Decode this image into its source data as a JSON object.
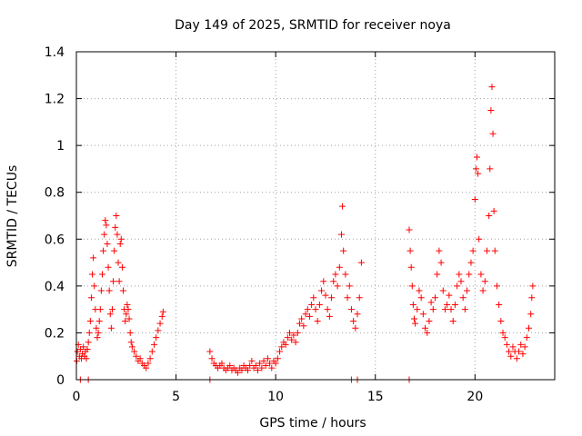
{
  "chart_data": {
    "type": "scatter",
    "title": "Day 149 of 2025, SRMTID for receiver noya",
    "xlabel": "GPS time / hours",
    "ylabel": "SRMTID / TECUs",
    "xlim": [
      0,
      24
    ],
    "ylim": [
      0,
      1.4
    ],
    "xticks": [
      0,
      5,
      10,
      15,
      20
    ],
    "xtick_labels": [
      "0",
      "5",
      "10",
      "15",
      "20"
    ],
    "yticks": [
      0,
      0.2,
      0.4,
      0.6,
      0.8,
      1.0,
      1.2,
      1.4
    ],
    "ytick_labels": [
      "0",
      "0.2",
      "0.4",
      "0.6",
      "0.8",
      "1",
      "1.2",
      "1.4"
    ],
    "grid": true,
    "marker": "+",
    "color": "#ff0000",
    "series": [
      {
        "name": "SRMTID",
        "points": [
          [
            0.02,
            0.08
          ],
          [
            0.05,
            0.12
          ],
          [
            0.1,
            0.15
          ],
          [
            0.15,
            0.1
          ],
          [
            0.2,
            0.13
          ],
          [
            0.25,
            0.09
          ],
          [
            0.3,
            0.11
          ],
          [
            0.35,
            0.14
          ],
          [
            0.4,
            0.1
          ],
          [
            0.45,
            0.12
          ],
          [
            0.5,
            0.09
          ],
          [
            0.55,
            0.13
          ],
          [
            0.6,
            0.16
          ],
          [
            0.65,
            0.2
          ],
          [
            0.7,
            0.25
          ],
          [
            0.75,
            0.35
          ],
          [
            0.8,
            0.45
          ],
          [
            0.85,
            0.52
          ],
          [
            0.9,
            0.4
          ],
          [
            0.95,
            0.3
          ],
          [
            1.0,
            0.22
          ],
          [
            1.05,
            0.18
          ],
          [
            1.1,
            0.2
          ],
          [
            1.15,
            0.25
          ],
          [
            1.2,
            0.3
          ],
          [
            1.25,
            0.38
          ],
          [
            1.3,
            0.45
          ],
          [
            1.35,
            0.55
          ],
          [
            1.4,
            0.62
          ],
          [
            1.45,
            0.68
          ],
          [
            1.5,
            0.66
          ],
          [
            1.55,
            0.58
          ],
          [
            1.6,
            0.48
          ],
          [
            1.65,
            0.38
          ],
          [
            1.7,
            0.28
          ],
          [
            1.75,
            0.22
          ],
          [
            1.8,
            0.3
          ],
          [
            1.85,
            0.42
          ],
          [
            1.9,
            0.55
          ],
          [
            1.95,
            0.65
          ],
          [
            2.0,
            0.7
          ],
          [
            2.05,
            0.62
          ],
          [
            2.1,
            0.5
          ],
          [
            2.15,
            0.42
          ],
          [
            2.2,
            0.58
          ],
          [
            2.25,
            0.6
          ],
          [
            2.3,
            0.48
          ],
          [
            2.35,
            0.38
          ],
          [
            2.4,
            0.3
          ],
          [
            2.45,
            0.25
          ],
          [
            2.5,
            0.28
          ],
          [
            2.55,
            0.32
          ],
          [
            2.6,
            0.3
          ],
          [
            2.65,
            0.26
          ],
          [
            2.7,
            0.2
          ],
          [
            2.75,
            0.16
          ],
          [
            2.8,
            0.14
          ],
          [
            2.9,
            0.12
          ],
          [
            3.0,
            0.1
          ],
          [
            3.1,
            0.08
          ],
          [
            3.2,
            0.09
          ],
          [
            3.3,
            0.07
          ],
          [
            3.4,
            0.06
          ],
          [
            3.5,
            0.05
          ],
          [
            3.6,
            0.07
          ],
          [
            3.7,
            0.09
          ],
          [
            3.8,
            0.12
          ],
          [
            3.9,
            0.15
          ],
          [
            4.0,
            0.18
          ],
          [
            4.1,
            0.21
          ],
          [
            4.2,
            0.24
          ],
          [
            4.3,
            0.27
          ],
          [
            4.35,
            0.29
          ],
          [
            0.2,
            0.0
          ],
          [
            0.6,
            0.0
          ],
          [
            6.7,
            0.12
          ],
          [
            6.8,
            0.09
          ],
          [
            6.9,
            0.07
          ],
          [
            7.0,
            0.06
          ],
          [
            7.1,
            0.05
          ],
          [
            7.2,
            0.06
          ],
          [
            7.3,
            0.07
          ],
          [
            7.4,
            0.05
          ],
          [
            7.5,
            0.04
          ],
          [
            7.6,
            0.05
          ],
          [
            7.7,
            0.06
          ],
          [
            7.8,
            0.04
          ],
          [
            7.9,
            0.05
          ],
          [
            8.0,
            0.04
          ],
          [
            8.1,
            0.03
          ],
          [
            8.2,
            0.05
          ],
          [
            8.3,
            0.04
          ],
          [
            8.4,
            0.06
          ],
          [
            8.5,
            0.05
          ],
          [
            8.6,
            0.04
          ],
          [
            8.7,
            0.06
          ],
          [
            8.8,
            0.08
          ],
          [
            8.9,
            0.05
          ],
          [
            9.0,
            0.06
          ],
          [
            9.1,
            0.04
          ],
          [
            9.2,
            0.07
          ],
          [
            9.3,
            0.05
          ],
          [
            9.4,
            0.08
          ],
          [
            9.5,
            0.06
          ],
          [
            9.6,
            0.09
          ],
          [
            9.7,
            0.07
          ],
          [
            9.8,
            0.05
          ],
          [
            9.9,
            0.08
          ],
          [
            10.0,
            0.07
          ],
          [
            10.1,
            0.09
          ],
          [
            10.2,
            0.12
          ],
          [
            10.3,
            0.14
          ],
          [
            10.4,
            0.16
          ],
          [
            10.5,
            0.15
          ],
          [
            10.6,
            0.18
          ],
          [
            10.7,
            0.2
          ],
          [
            10.8,
            0.17
          ],
          [
            10.9,
            0.19
          ],
          [
            11.0,
            0.16
          ],
          [
            11.1,
            0.2
          ],
          [
            11.2,
            0.24
          ],
          [
            11.3,
            0.26
          ],
          [
            11.4,
            0.23
          ],
          [
            11.5,
            0.28
          ],
          [
            11.6,
            0.3
          ],
          [
            11.7,
            0.27
          ],
          [
            11.8,
            0.32
          ],
          [
            11.9,
            0.35
          ],
          [
            12.0,
            0.3
          ],
          [
            12.1,
            0.25
          ],
          [
            12.2,
            0.32
          ],
          [
            12.3,
            0.38
          ],
          [
            12.4,
            0.42
          ],
          [
            12.5,
            0.36
          ],
          [
            12.6,
            0.3
          ],
          [
            12.7,
            0.27
          ],
          [
            12.8,
            0.35
          ],
          [
            12.9,
            0.42
          ],
          [
            13.0,
            0.45
          ],
          [
            13.1,
            0.4
          ],
          [
            13.2,
            0.48
          ],
          [
            13.3,
            0.62
          ],
          [
            13.35,
            0.74
          ],
          [
            13.4,
            0.55
          ],
          [
            13.5,
            0.45
          ],
          [
            13.6,
            0.35
          ],
          [
            13.7,
            0.4
          ],
          [
            13.8,
            0.3
          ],
          [
            13.9,
            0.25
          ],
          [
            14.0,
            0.22
          ],
          [
            14.1,
            0.28
          ],
          [
            14.2,
            0.35
          ],
          [
            14.3,
            0.5
          ],
          [
            6.7,
            0.0
          ],
          [
            13.8,
            0.0
          ],
          [
            14.1,
            0.0
          ],
          [
            16.7,
            0.0
          ],
          [
            16.7,
            0.64
          ],
          [
            16.75,
            0.55
          ],
          [
            16.8,
            0.48
          ],
          [
            16.85,
            0.4
          ],
          [
            16.9,
            0.32
          ],
          [
            16.95,
            0.26
          ],
          [
            17.0,
            0.24
          ],
          [
            17.1,
            0.3
          ],
          [
            17.2,
            0.38
          ],
          [
            17.3,
            0.35
          ],
          [
            17.4,
            0.28
          ],
          [
            17.5,
            0.22
          ],
          [
            17.6,
            0.2
          ],
          [
            17.7,
            0.25
          ],
          [
            17.8,
            0.33
          ],
          [
            17.9,
            0.3
          ],
          [
            18.0,
            0.35
          ],
          [
            18.1,
            0.45
          ],
          [
            18.2,
            0.55
          ],
          [
            18.3,
            0.5
          ],
          [
            18.4,
            0.38
          ],
          [
            18.5,
            0.3
          ],
          [
            18.6,
            0.32
          ],
          [
            18.7,
            0.36
          ],
          [
            18.8,
            0.3
          ],
          [
            18.9,
            0.25
          ],
          [
            19.0,
            0.32
          ],
          [
            19.1,
            0.4
          ],
          [
            19.2,
            0.45
          ],
          [
            19.3,
            0.42
          ],
          [
            19.4,
            0.35
          ],
          [
            19.5,
            0.3
          ],
          [
            19.6,
            0.38
          ],
          [
            19.7,
            0.45
          ],
          [
            19.8,
            0.5
          ],
          [
            19.9,
            0.55
          ],
          [
            20.0,
            0.77
          ],
          [
            20.05,
            0.9
          ],
          [
            20.1,
            0.95
          ],
          [
            20.15,
            0.88
          ],
          [
            20.2,
            0.6
          ],
          [
            20.3,
            0.45
          ],
          [
            20.4,
            0.38
          ],
          [
            20.5,
            0.42
          ],
          [
            20.6,
            0.55
          ],
          [
            20.7,
            0.7
          ],
          [
            20.75,
            0.9
          ],
          [
            20.8,
            1.15
          ],
          [
            20.85,
            1.25
          ],
          [
            20.9,
            1.05
          ],
          [
            20.95,
            0.72
          ],
          [
            21.0,
            0.55
          ],
          [
            21.1,
            0.4
          ],
          [
            21.2,
            0.32
          ],
          [
            21.3,
            0.25
          ],
          [
            21.4,
            0.2
          ],
          [
            21.5,
            0.18
          ],
          [
            21.6,
            0.15
          ],
          [
            21.7,
            0.12
          ],
          [
            21.8,
            0.1
          ],
          [
            21.9,
            0.14
          ],
          [
            22.0,
            0.12
          ],
          [
            22.1,
            0.09
          ],
          [
            22.2,
            0.12
          ],
          [
            22.3,
            0.15
          ],
          [
            22.4,
            0.11
          ],
          [
            22.5,
            0.14
          ],
          [
            22.6,
            0.18
          ],
          [
            22.7,
            0.22
          ],
          [
            22.8,
            0.28
          ],
          [
            22.85,
            0.35
          ],
          [
            22.9,
            0.4
          ]
        ]
      }
    ]
  }
}
